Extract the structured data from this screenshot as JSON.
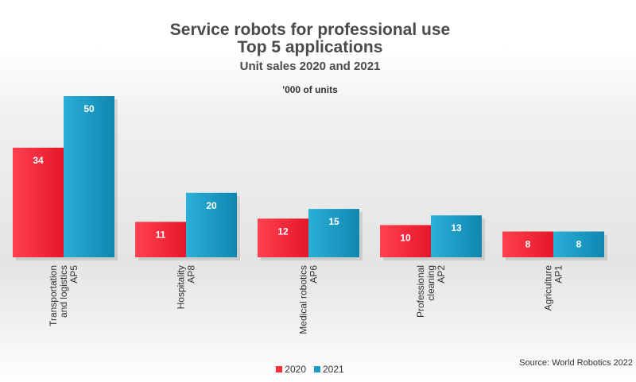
{
  "chart_data": {
    "type": "bar",
    "title": [
      "Service robots for professional use",
      "Top 5 applications"
    ],
    "subtitle": "Unit sales 2020 and 2021",
    "ylabel": "'000 of units",
    "xlabel": "",
    "categories": [
      [
        "Transportation",
        "and logistics",
        "AP5"
      ],
      [
        "Hospitality",
        "AP8"
      ],
      [
        "Medical robotics",
        "AP6"
      ],
      [
        "Professional",
        "cleaning",
        "AP2"
      ],
      [
        "Agriculture",
        "AP1"
      ]
    ],
    "series": [
      {
        "name": "2020",
        "values": [
          34,
          11,
          12,
          10,
          8
        ],
        "color": "#ff2a3c"
      },
      {
        "name": "2021",
        "values": [
          50,
          20,
          15,
          13,
          8
        ],
        "color": "#1c9cc6"
      }
    ],
    "ylim": [
      0,
      50
    ],
    "grid": false,
    "legend": "bottom-center",
    "source": "Source: World Robotics 2022"
  }
}
